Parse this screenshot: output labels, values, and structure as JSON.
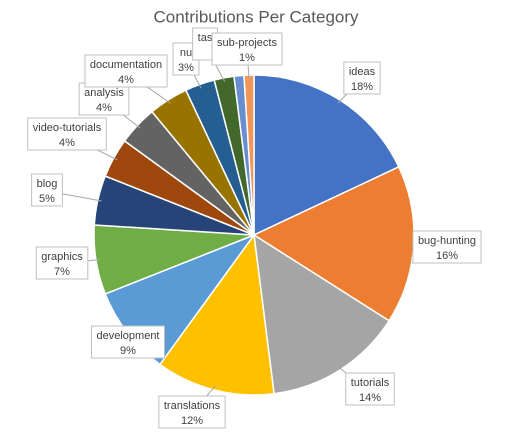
{
  "chart_data": {
    "type": "pie",
    "title": "Contributions Per Category",
    "categories": [
      "ideas",
      "bug-hunting",
      "tutorials",
      "translations",
      "development",
      "graphics",
      "blog",
      "video-tutorials",
      "analysis",
      "documentation",
      "nu",
      "tas",
      null,
      "sub-projects"
    ],
    "values": [
      18,
      16,
      14,
      12,
      9,
      7,
      5,
      4,
      4,
      4,
      3,
      2,
      1,
      1
    ],
    "value_labels": [
      "18%",
      "16%",
      "14%",
      "12%",
      "9%",
      "7%",
      "5%",
      "4%",
      "4%",
      "4%",
      "3%",
      null,
      null,
      "1%"
    ],
    "colors": [
      "#4472c4",
      "#ed7d31",
      "#a5a5a5",
      "#ffc000",
      "#5b9bd5",
      "#70ad47",
      "#264478",
      "#9e480e",
      "#636363",
      "#997300",
      "#255e91",
      "#43682b",
      "#698ed0",
      "#f1975a"
    ]
  }
}
